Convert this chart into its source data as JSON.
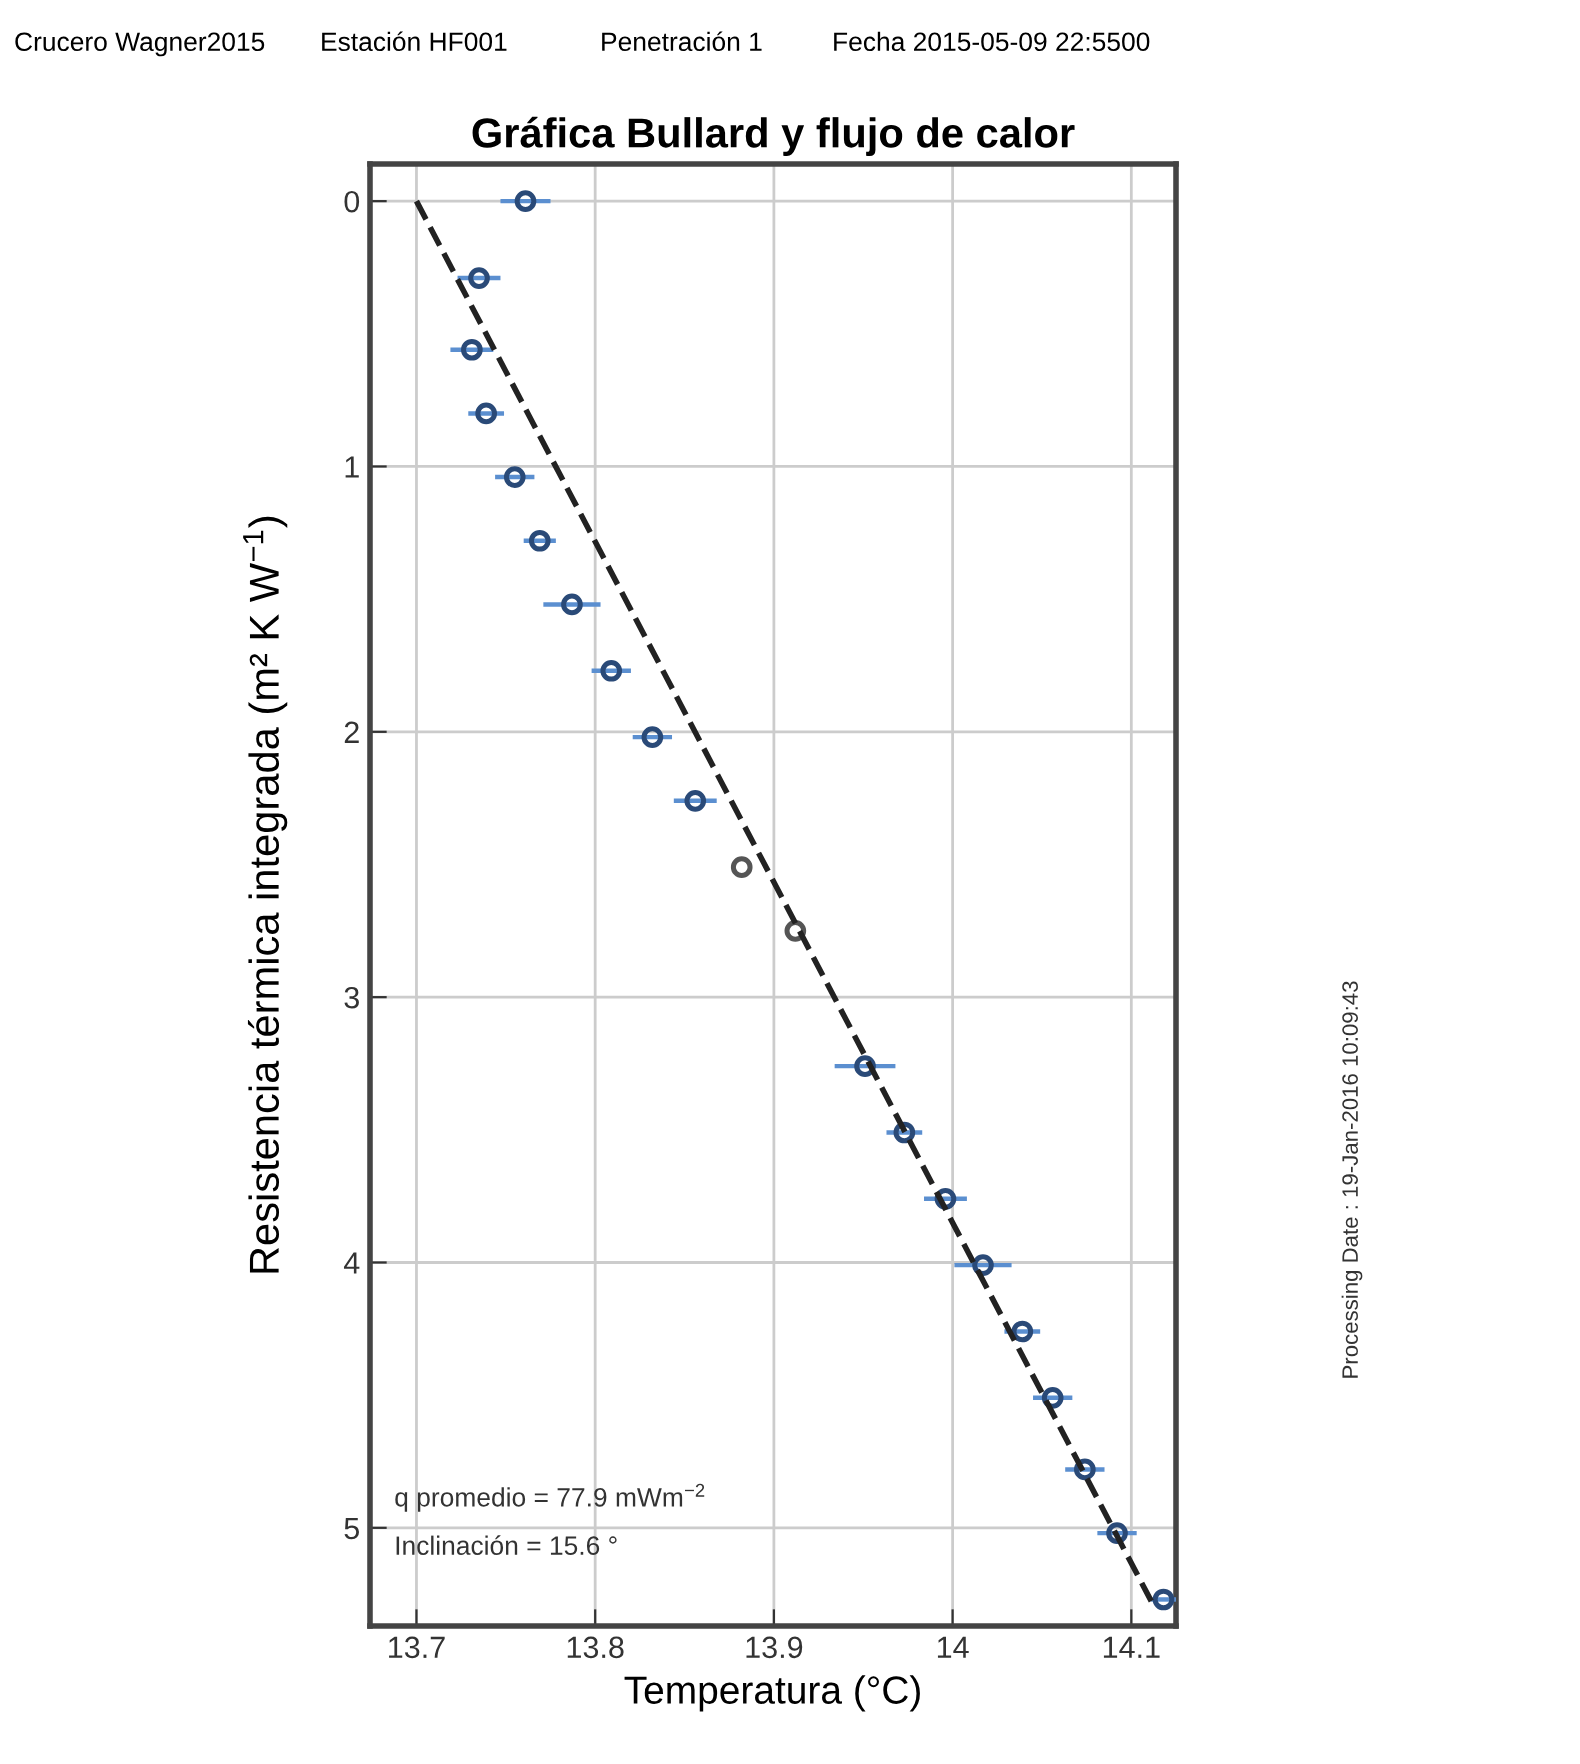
{
  "chart_data": {
    "type": "scatter",
    "title": "Gráfica Bullard y flujo de calor",
    "xlabel": "Temperatura (°C)",
    "ylabel": "Resistencia térmica integrada (m² K W$^{−1}$)",
    "xlim": [
      13.674,
      14.125
    ],
    "xticks": [
      13.7,
      13.8,
      13.9,
      14,
      14.1
    ],
    "ylim": [
      5.37,
      -0.14
    ],
    "yticks": [
      0,
      1,
      2,
      3,
      4,
      5
    ],
    "grid": true,
    "marker": "circle",
    "series": [
      {
        "color": "#2a4a78",
        "x": [
          13.761,
          13.735,
          13.731,
          13.739,
          13.755,
          13.769,
          13.787,
          13.809,
          13.832,
          13.856
        ],
        "values": [
          0,
          0.29,
          0.56,
          0.8,
          1.04,
          1.28,
          1.52,
          1.77,
          2.02,
          2.26
        ],
        "xerrors": [
          0.014,
          0.012,
          0.012,
          0.01,
          0.011,
          0.009,
          0.016,
          0.011,
          0.011,
          0.012
        ]
      },
      {
        "color": "#555555",
        "x": [
          13.882,
          13.912
        ],
        "values": [
          2.51,
          2.75
        ]
      },
      {
        "color": "#2a4a78",
        "x": [
          13.951,
          13.973,
          13.996,
          14.017,
          14.039,
          14.056,
          14.074,
          14.092,
          14.118
        ],
        "values": [
          3.26,
          3.51,
          3.76,
          4.01,
          4.26,
          4.51,
          4.78,
          5.02,
          5.27
        ],
        "xerrors": [
          0.017,
          0.01,
          0.012,
          0.016,
          0.01,
          0.011,
          0.011,
          0.011,
          0.007
        ]
      },
      {
        "type": "line",
        "color": "#222222",
        "line_style": "dashed",
        "marker": "none",
        "x": [
          13.7,
          14.113
        ],
        "values": [
          0,
          5.3
        ]
      }
    ],
    "annotations": [
      "Crucero Wagner2015",
      "Estación HF001",
      "Penetración 1",
      "Fecha 2015-05-09 22:5500",
      "q promedio = 77.9 mWm$^{−2}$",
      "Inclinación = 15.6 °",
      "Processing Date : 19-Jan-2016 10:09:43"
    ]
  }
}
